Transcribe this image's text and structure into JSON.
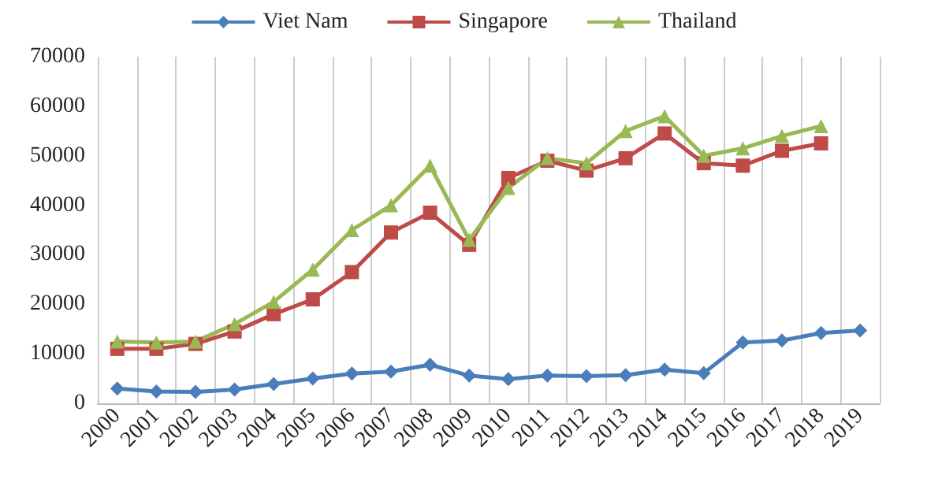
{
  "chart_data": {
    "type": "line",
    "categories": [
      "2000",
      "2001",
      "2002",
      "2003",
      "2004",
      "2005",
      "2006",
      "2007",
      "2008",
      "2009",
      "2010",
      "2011",
      "2012",
      "2013",
      "2014",
      "2015",
      "2016",
      "2017",
      "2018",
      "2019"
    ],
    "series": [
      {
        "name": "Viet Nam",
        "color": "#4a7ebb",
        "marker": "diamond",
        "values": [
          3000,
          2400,
          2300,
          2800,
          3900,
          5000,
          6000,
          6400,
          7800,
          5600,
          4900,
          5600,
          5500,
          5700,
          6800,
          6100,
          12300,
          12700,
          14200,
          14700
        ]
      },
      {
        "name": "Singapore",
        "color": "#be4b48",
        "marker": "square",
        "values": [
          11000,
          11000,
          12000,
          14500,
          18000,
          21000,
          26500,
          34500,
          38500,
          32000,
          45500,
          49000,
          47000,
          49500,
          54500,
          48500,
          48000,
          51000,
          52500,
          null
        ]
      },
      {
        "name": "Thailand",
        "color": "#98b954",
        "marker": "triangle",
        "values": [
          12500,
          12300,
          12500,
          16000,
          20500,
          27000,
          35000,
          40000,
          48000,
          33000,
          43500,
          49500,
          48500,
          55000,
          58000,
          50000,
          51500,
          54000,
          56000,
          null
        ]
      }
    ],
    "ylim": [
      0,
      70000
    ],
    "yticks": [
      0,
      10000,
      20000,
      30000,
      40000,
      50000,
      60000,
      70000
    ],
    "grid": "x",
    "legend": "top"
  }
}
